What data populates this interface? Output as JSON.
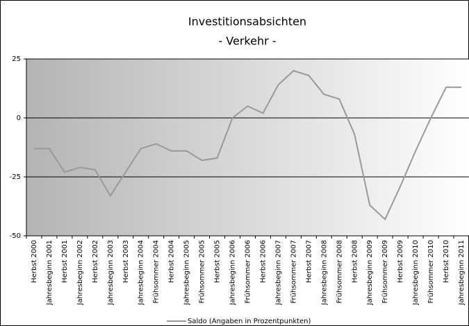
{
  "chart_data": {
    "type": "line",
    "title": "Investitionsabsichten",
    "subtitle": "- Verkehr -",
    "categories": [
      "Herbst 2000",
      "Jahresbeginn 2001",
      "Herbst 2001",
      "Jahresbeginn 2002",
      "Herbst 2002",
      "Jahresbeginn 2003",
      "Herbst 2003",
      "Jahresbeginn 2004",
      "Frühsommer 2004",
      "Herbst 2004",
      "Jahresbeginn 2005",
      "Frühsommer 2005",
      "Herbst 2005",
      "Jahresbeginn 2006",
      "Frühsommer 2006",
      "Herbst 2006",
      "Jahresbeginn 2007",
      "Frühsommer 2007",
      "Herbst 2007",
      "Jahresbeginn 2008",
      "Frühsommer 2008",
      "Herbst 2008",
      "Jahresbeginn 2009",
      "Frühsommer 2009",
      "Herbst 2009",
      "Jahresbeginn 2010",
      "Frühsommer 2010",
      "Herbst 2010",
      "Jahresbeginn 2011"
    ],
    "series": [
      {
        "name": "Saldo (Angaben in Prozentpunkten)",
        "color": "#999999",
        "values": [
          -13,
          -13,
          -23,
          -21,
          -22,
          -33,
          -23,
          -13,
          -11,
          -14,
          -14,
          -18,
          -17,
          0,
          5,
          2,
          14,
          20,
          18,
          10,
          8,
          -7,
          -37,
          -43,
          -29,
          -14,
          0,
          13,
          13
        ]
      }
    ],
    "ylim": [
      -50,
      25
    ],
    "yticks": [
      25,
      0,
      -25,
      -50
    ],
    "grid": true,
    "legend": "bottom"
  }
}
